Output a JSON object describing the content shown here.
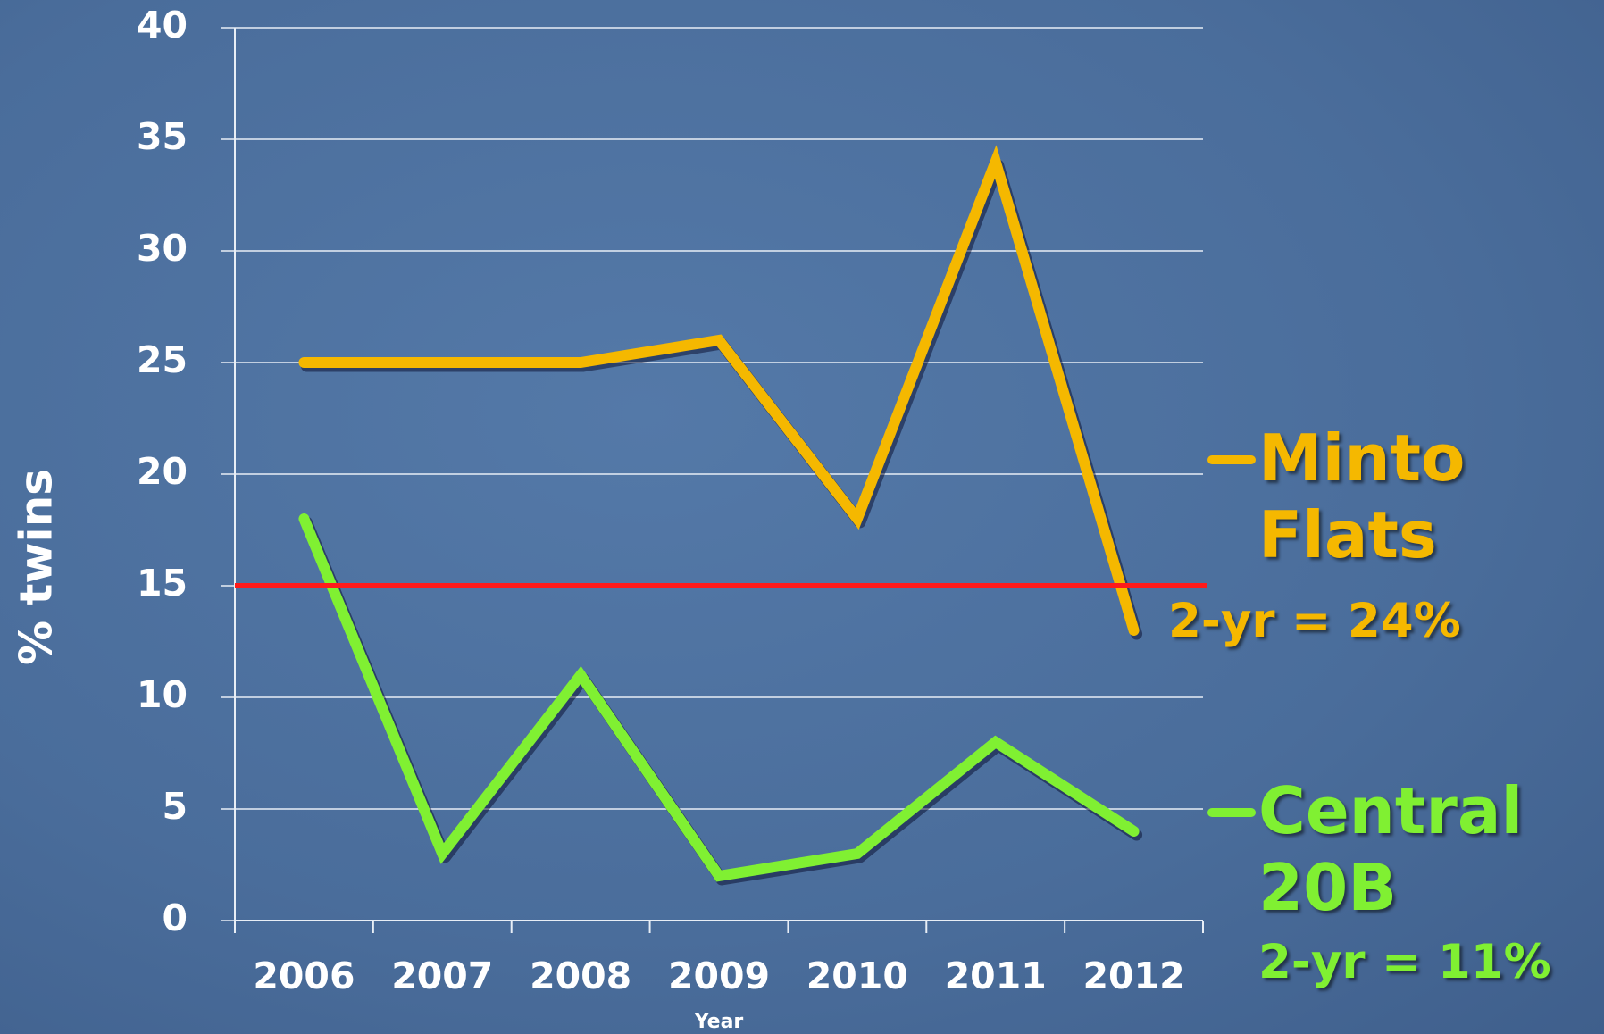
{
  "chart_data": {
    "type": "line",
    "categories": [
      "2006",
      "2007",
      "2008",
      "2009",
      "2010",
      "2011",
      "2012"
    ],
    "series": [
      {
        "name": "Minto Flats",
        "color": "#f5b800",
        "values": [
          25,
          25,
          25,
          26,
          18,
          34,
          13
        ]
      },
      {
        "name": "Central 20B",
        "color": "#80f032",
        "values": [
          18,
          3,
          11,
          2,
          3,
          8,
          4
        ]
      }
    ],
    "reference_lines": [
      {
        "value": 15,
        "color": "#ff1a1a"
      }
    ],
    "annotations": [
      "2-yr = 24%",
      "2-yr = 11%"
    ],
    "x_label": "Year",
    "y_label": "% twins",
    "ylim": [
      0,
      40
    ],
    "yticks": [
      0,
      5,
      10,
      15,
      20,
      25,
      30,
      35,
      40
    ],
    "grid": true
  }
}
